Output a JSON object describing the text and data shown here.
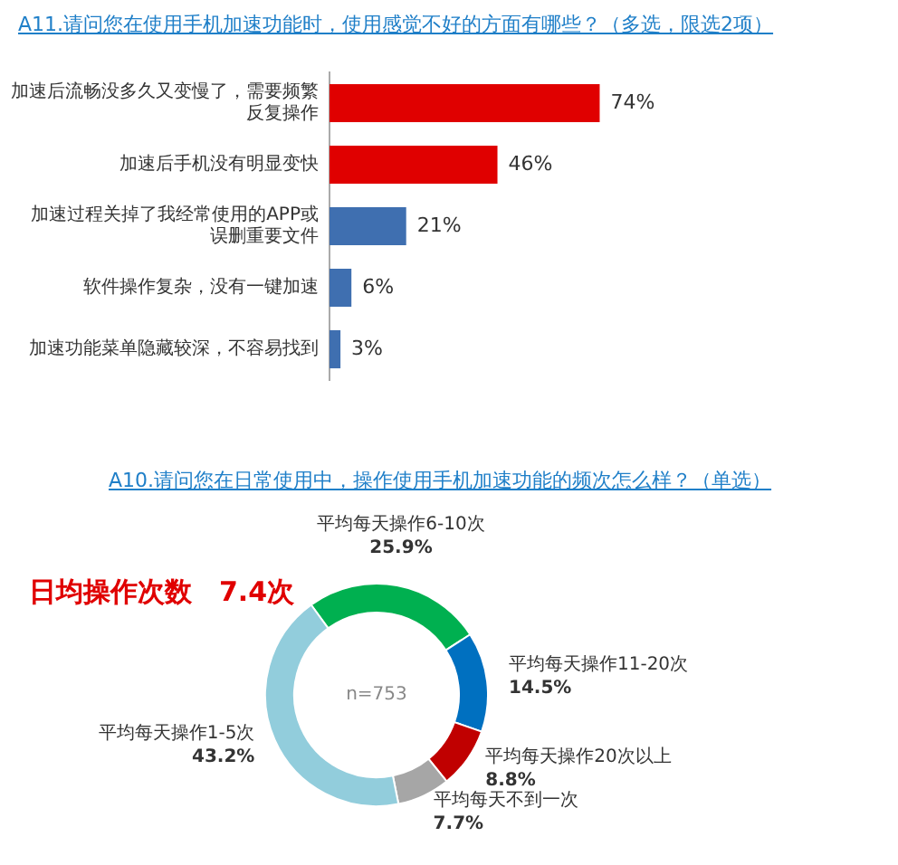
{
  "chart_data": [
    {
      "type": "bar",
      "orientation": "horizontal",
      "title": "A11.请问您在使用手机加速功能时，使用感觉不好的方面有哪些？（多选，限选2项）",
      "categories": [
        "加速后流畅没多久又变慢了，需要频繁反复操作",
        "加速后手机没有明显变快",
        "加速过程关掉了我经常使用的APP或误删重要文件",
        "软件操作复杂，没有一键加速",
        "加速功能菜单隐藏较深，不容易找到"
      ],
      "values": [
        74,
        46,
        21,
        6,
        3
      ],
      "colors": [
        "#e00000",
        "#e00000",
        "#3f6fb0",
        "#3f6fb0",
        "#3f6fb0"
      ],
      "value_labels": [
        "74%",
        "46%",
        "21%",
        "6%",
        "3%"
      ],
      "grid": false,
      "legend": false,
      "tick_labels": "y"
    },
    {
      "type": "donut",
      "title": "A10.请问您在日常使用中，操作使用手机加速功能的频次怎么样？（单选）",
      "categories": [
        "平均每天操作6-10次",
        "平均每天操作11-20次",
        "平均每天操作20次以上",
        "平均每天不到一次",
        "平均每天操作1-5次"
      ],
      "values": [
        25.9,
        14.5,
        8.8,
        7.7,
        43.2
      ],
      "colors": [
        "#00b050",
        "#0070c0",
        "#c00000",
        "#a6a6a6",
        "#92cddc"
      ],
      "value_labels": [
        "25.9%",
        "14.5%",
        "8.8%",
        "7.7%",
        "43.2%"
      ],
      "annotations": [
        "日均操作次数　7.4次",
        "n=753"
      ],
      "legend": false
    }
  ]
}
